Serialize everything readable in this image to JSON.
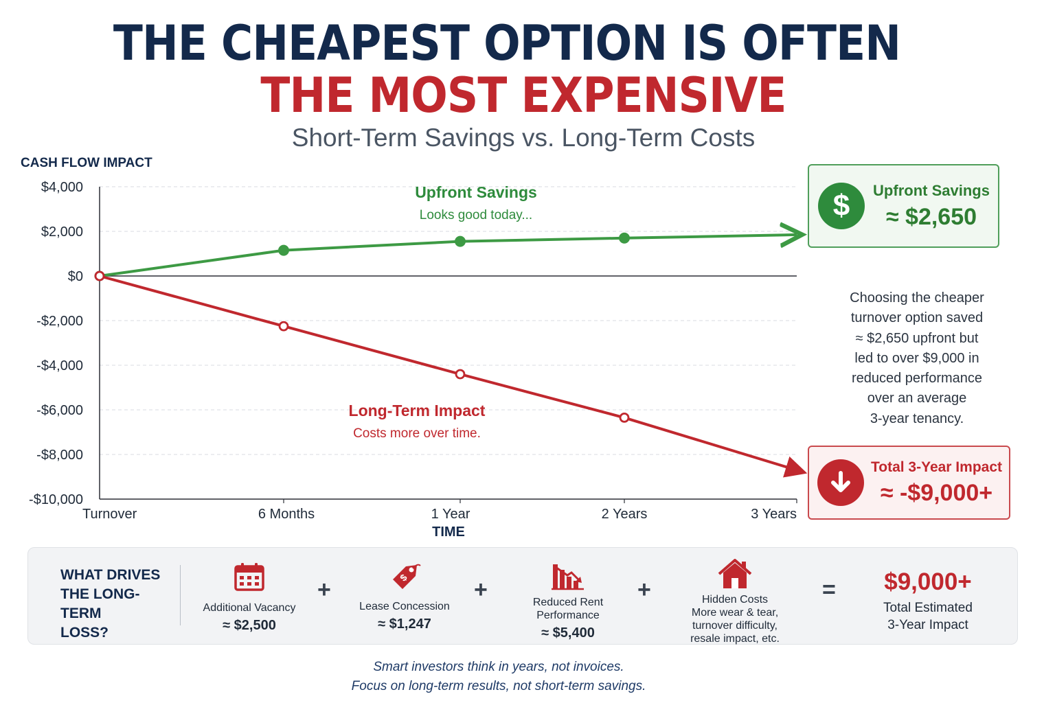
{
  "header": {
    "title_line1": "THE CHEAPEST OPTION IS OFTEN",
    "title_line2": "THE MOST EXPENSIVE",
    "subtitle": "Short-Term Savings vs. Long-Term Costs"
  },
  "chart_data": {
    "type": "line",
    "ylabel": "CASH FLOW IMPACT",
    "xlabel": "TIME",
    "categories": [
      "Turnover",
      "6 Months",
      "1 Year",
      "2 Years",
      "3 Years"
    ],
    "ylim": [
      -10000,
      4000
    ],
    "yticks": [
      4000,
      2000,
      0,
      -2000,
      -4000,
      -6000,
      -8000,
      -10000
    ],
    "ytick_labels": [
      "$4,000",
      "$2,000",
      "$0",
      "-$2,000",
      "-$4,000",
      "-$6,000",
      "-$8,000",
      "-$10,000"
    ],
    "grid": true,
    "series": [
      {
        "name": "Upfront Savings",
        "note": "Looks good today...",
        "color": "#3d9a44",
        "values": [
          0,
          1150,
          1550,
          1700,
          1850
        ]
      },
      {
        "name": "Long-Term Impact",
        "note": "Costs more over time.",
        "color": "#c0282e",
        "values": [
          0,
          -2250,
          -4400,
          -6350,
          -8700
        ]
      }
    ]
  },
  "cards": {
    "savings": {
      "icon": "dollar-icon",
      "symbol": "$",
      "label": "Upfront Savings",
      "value": "≈ $2,650"
    },
    "impact": {
      "icon": "arrow-down-icon",
      "label": "Total 3-Year Impact",
      "value": "≈ -$9,000+"
    }
  },
  "explanation": [
    "Choosing the cheaper",
    "turnover option saved",
    "≈ $2,650 upfront but",
    "led to over $9,000 in",
    "reduced performance",
    "over an average",
    "3-year tenancy."
  ],
  "drivers": {
    "title_lines": [
      "WHAT DRIVES",
      "THE LONG-TERM",
      "LOSS?"
    ],
    "items": [
      {
        "icon": "calendar-icon",
        "label_lines": [
          "Additional Vacancy"
        ],
        "value": "≈ $2,500"
      },
      {
        "icon": "price-tag-icon",
        "label_lines": [
          "Lease Concession"
        ],
        "value": "≈ $1,247"
      },
      {
        "icon": "declining-bar-chart-icon",
        "label_lines": [
          "Reduced Rent",
          "Performance"
        ],
        "value": "≈ $5,400"
      },
      {
        "icon": "house-icon",
        "label_lines": [
          "Hidden Costs",
          "More wear & tear,",
          "turnover difficulty,",
          "resale impact, etc."
        ],
        "value": ""
      }
    ],
    "plus": "+",
    "equals": "=",
    "total_value": "$9,000+",
    "total_label_lines": [
      "Total Estimated",
      "3-Year Impact"
    ]
  },
  "footer": {
    "line1": "Smart investors think in years, not invoices.",
    "line2": "Focus on long-term results, not short-term savings."
  },
  "colors": {
    "navy": "#13294b",
    "red": "#c0282e",
    "green": "#3d9a44"
  }
}
